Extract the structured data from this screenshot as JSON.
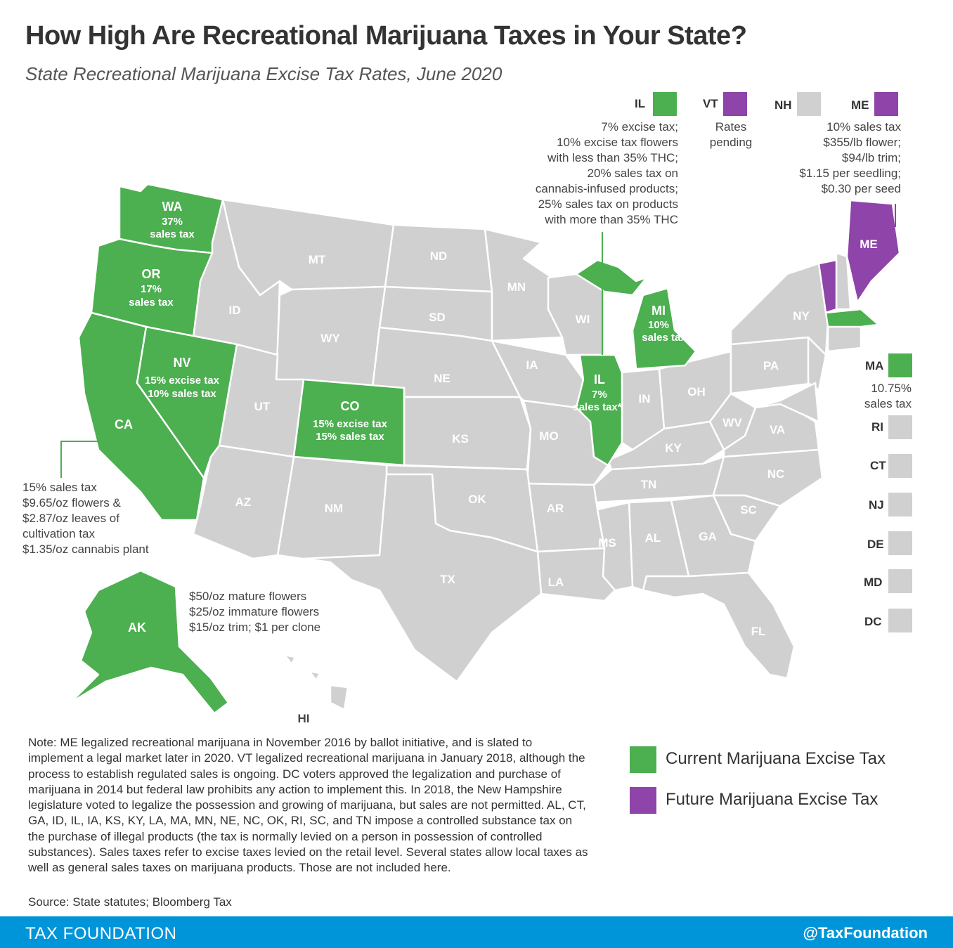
{
  "title": "How High Are Recreational Marijuana Taxes in Your State?",
  "subtitle": "State Recreational Marijuana Excise Tax Rates, June 2020",
  "colors": {
    "current": "#4caf50",
    "future": "#8e44a8",
    "none": "#d0d0d0",
    "footer": "#0095d9"
  },
  "states": {
    "WA": {
      "abbr": "WA",
      "lines": [
        "37%",
        "sales tax"
      ]
    },
    "OR": {
      "abbr": "OR",
      "lines": [
        "17%",
        "sales tax"
      ]
    },
    "CA": {
      "abbr": "CA"
    },
    "NV": {
      "abbr": "NV",
      "lines": [
        "15% excise tax",
        "10% sales tax"
      ]
    },
    "CO": {
      "abbr": "CO",
      "lines": [
        "15% excise tax",
        "15% sales tax"
      ]
    },
    "MI": {
      "abbr": "MI",
      "lines": [
        "10%",
        "sales tax"
      ]
    },
    "IL": {
      "abbr": "IL",
      "lines": [
        "7%",
        "sales tax*"
      ]
    },
    "AK": {
      "abbr": "AK"
    },
    "ME": {
      "abbr": "ME"
    },
    "plain": [
      "MT",
      "ND",
      "MN",
      "ID",
      "WY",
      "SD",
      "WI",
      "NY",
      "UT",
      "NE",
      "IA",
      "PA",
      "IN",
      "OH",
      "KS",
      "MO",
      "WV",
      "VA",
      "KY",
      "AZ",
      "NM",
      "OK",
      "TN",
      "NC",
      "AR",
      "SC",
      "MS",
      "AL",
      "GA",
      "TX",
      "LA",
      "FL",
      "HI"
    ]
  },
  "top_boxes": {
    "IL": {
      "label": "IL",
      "text": "7% excise tax;\n10% excise tax flowers\nwith less than 35% THC;\n20% sales tax on\ncannabis-infused products;\n25% sales tax on products\nwith more than 35% THC"
    },
    "VT": {
      "label": "VT",
      "text": "Rates\npending"
    },
    "NH": {
      "label": "NH"
    },
    "ME": {
      "label": "ME",
      "text": "10% sales tax\n$355/lb flower;\n$94/lb trim;\n$1.15 per seedling;\n$0.30 per seed"
    }
  },
  "ca_note": "15% sales tax\n$9.65/oz flowers &\n$2.87/oz leaves of\ncultivation tax\n$1.35/oz cannabis plant",
  "ak_note": "$50/oz mature flowers\n$25/oz immature flowers\n$15/oz trim; $1 per clone",
  "side_boxes": [
    {
      "label": "MA",
      "status": "current",
      "note": "10.75%\nsales tax"
    },
    {
      "label": "RI",
      "status": "none"
    },
    {
      "label": "CT",
      "status": "none"
    },
    {
      "label": "NJ",
      "status": "none"
    },
    {
      "label": "DE",
      "status": "none"
    },
    {
      "label": "MD",
      "status": "none"
    },
    {
      "label": "DC",
      "status": "none"
    }
  ],
  "note": "Note: ME legalized recreational marijuana in November 2016 by ballot initiative, and is slated to implement a legal market later in 2020. VT legalized recreational marijuana in January 2018, although the process to establish regulated sales is ongoing. DC voters approved the legalization and purchase of marijuana in 2014 but federal law prohibits any action to implement this. In 2018, the New Hampshire legislature voted to legalize the possession and growing of marijuana, but sales are not permitted. AL, CT, GA, ID, IL, IA, KS, KY, LA, MA, MN, NE, NC, OK, RI, SC, and TN impose a controlled substance tax on the purchase of illegal products (the tax is normally levied on a person in possession of controlled substances). Sales taxes refer to excise taxes levied on the retail level. Several states allow local taxes as well as general sales taxes on marijuana products. Those are not included here.",
  "source": "Source: State statutes; Bloomberg Tax",
  "legend": [
    {
      "label": "Current Marijuana Excise Tax",
      "status": "current"
    },
    {
      "label": "Future Marijuana Excise Tax",
      "status": "future"
    }
  ],
  "footer": {
    "left": "TAX FOUNDATION",
    "right": "@TaxFoundation"
  }
}
